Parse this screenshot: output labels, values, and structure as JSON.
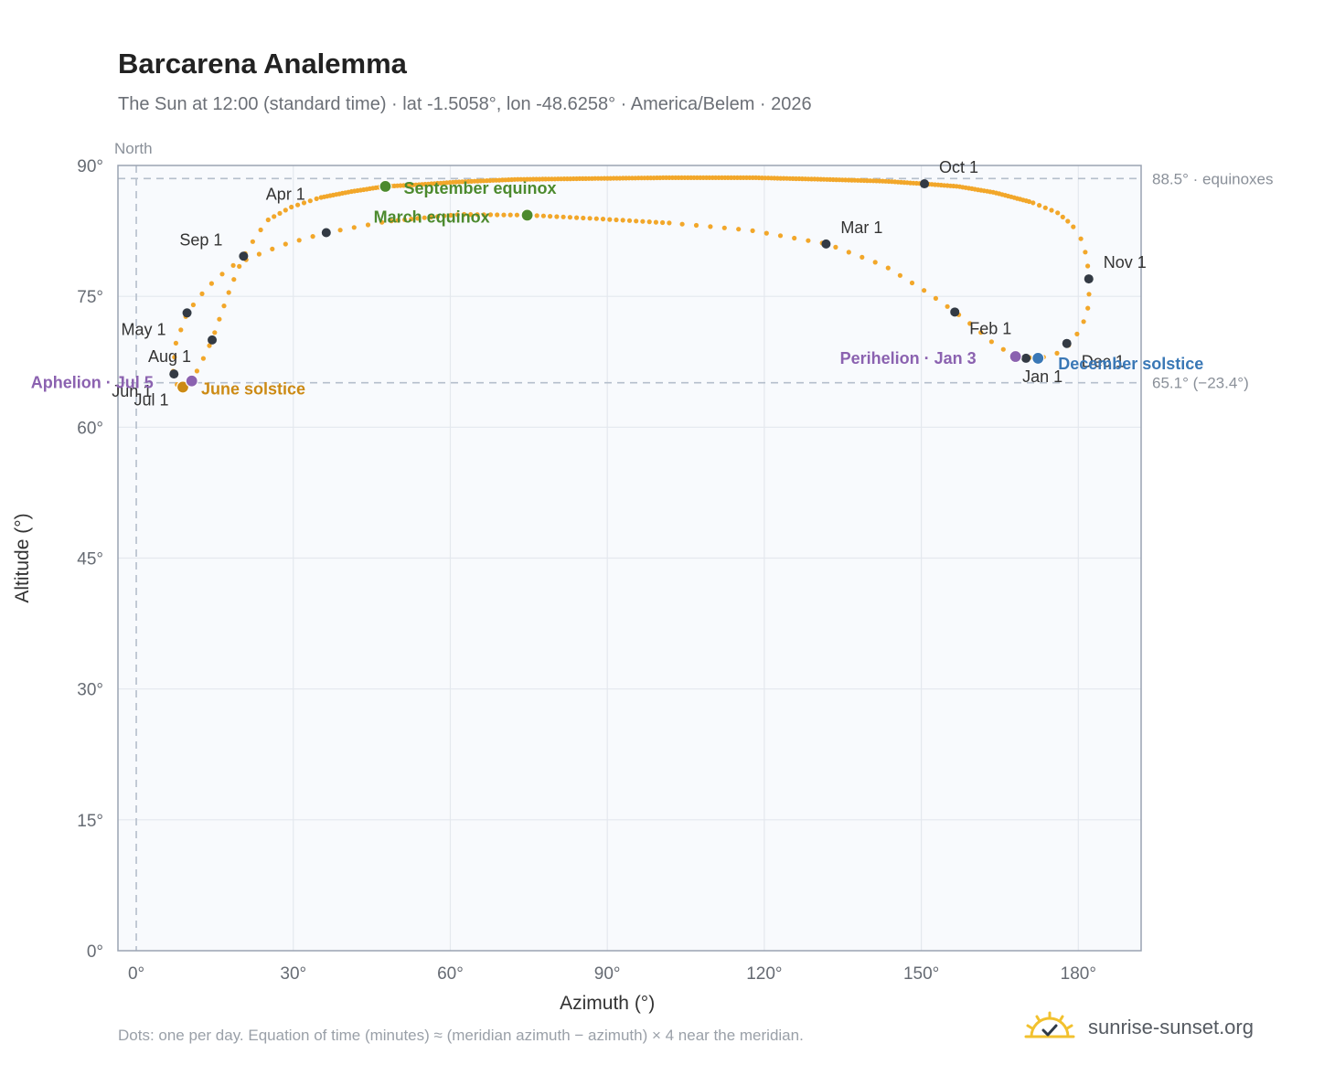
{
  "header": {
    "title": "Barcarena Analemma",
    "subtitle": "The Sun at 12:00 (standard time) · lat -1.5058°, lon -48.6258° · America/Belem · 2026"
  },
  "footer": {
    "note": "Dots: one per day. Equation of time (minutes) ≈ (meridian azimuth − azimuth) × 4 near the meridian.",
    "brand": "sunrise-sunset.org",
    "brand_icon": "sun-logo-icon"
  },
  "colors": {
    "analemma": "#f2a72a",
    "month_marker": "#333a44",
    "equinox": "#4c8a2e",
    "june_solstice": "#cc8a14",
    "december_solstice": "#3a78b6",
    "aphelion_perihelion": "#8b62b0",
    "plot_background": "#f8fafd",
    "grid": "#e4e8ee",
    "reference_line": "#b5bfcc"
  },
  "chart_data": {
    "type": "scatter",
    "title": "Barcarena Analemma",
    "xlabel": "Azimuth (°)",
    "ylabel": "Altitude (°)",
    "xlim": [
      -3.5,
      192
    ],
    "ylim": [
      0,
      90
    ],
    "x_ticks": [
      0,
      30,
      60,
      90,
      120,
      150,
      180
    ],
    "x_tick_labels": [
      "0°",
      "30°",
      "60°",
      "90°",
      "120°",
      "150°",
      "180°"
    ],
    "y_ticks": [
      0,
      15,
      30,
      45,
      60,
      75,
      90
    ],
    "y_tick_labels": [
      "0°",
      "15°",
      "30°",
      "45°",
      "60°",
      "75°",
      "90°"
    ],
    "grid": true,
    "north_line": {
      "azimuth": 0,
      "label": "North"
    },
    "reference_lines": [
      {
        "altitude": 88.5,
        "label": "88.5° · equinoxes"
      },
      {
        "altitude": 65.1,
        "label": "65.1° (−23.4°)"
      }
    ],
    "analemma_path": [
      [
        168.0,
        68.1
      ],
      [
        172.3,
        67.9
      ],
      [
        175.5,
        68.3
      ],
      [
        178.4,
        69.5
      ],
      [
        180.7,
        71.5
      ],
      [
        182.0,
        74.0
      ],
      [
        182.1,
        77.0
      ],
      [
        181.6,
        79.5
      ],
      [
        180.6,
        81.5
      ],
      [
        178.8,
        83.2
      ],
      [
        176.0,
        84.6
      ],
      [
        171.0,
        85.8
      ],
      [
        164.0,
        86.9
      ],
      [
        157.0,
        87.6
      ],
      [
        150.5,
        87.9
      ],
      [
        143.0,
        88.2
      ],
      [
        132.0,
        88.4
      ],
      [
        118.0,
        88.6
      ],
      [
        102.0,
        88.6
      ],
      [
        86.5,
        88.5
      ],
      [
        72.5,
        88.4
      ],
      [
        61.0,
        88.1
      ],
      [
        54.0,
        87.8
      ],
      [
        47.5,
        87.6
      ],
      [
        41.0,
        87.0
      ],
      [
        35.0,
        86.3
      ],
      [
        29.5,
        85.2
      ],
      [
        25.0,
        83.7
      ],
      [
        22.5,
        81.5
      ],
      [
        20.5,
        79.6
      ],
      [
        18.0,
        76.0
      ],
      [
        16.0,
        72.6
      ],
      [
        14.5,
        70.0
      ],
      [
        12.5,
        67.5
      ],
      [
        10.8,
        65.5
      ],
      [
        9.0,
        64.6
      ],
      [
        7.8,
        64.9
      ],
      [
        7.0,
        66.0
      ],
      [
        7.5,
        69.5
      ],
      [
        9.7,
        73.1
      ],
      [
        13.5,
        76.0
      ],
      [
        18.0,
        78.4
      ],
      [
        22.5,
        79.6
      ],
      [
        28.0,
        80.9
      ],
      [
        36.3,
        82.3
      ],
      [
        48.0,
        83.6
      ],
      [
        62.0,
        84.4
      ],
      [
        75.0,
        84.3
      ],
      [
        88.0,
        83.9
      ],
      [
        102.0,
        83.4
      ],
      [
        117.0,
        82.6
      ],
      [
        132.0,
        81.0
      ],
      [
        143.0,
        78.5
      ],
      [
        151.0,
        75.5
      ],
      [
        156.5,
        73.2
      ],
      [
        160.5,
        71.3
      ],
      [
        164.0,
        69.5
      ],
      [
        168.0,
        68.1
      ]
    ],
    "month_markers": [
      {
        "label": "Jan 1",
        "azimuth": 170.0,
        "altitude": 67.9
      },
      {
        "label": "Feb 1",
        "azimuth": 156.4,
        "altitude": 73.2
      },
      {
        "label": "Mar 1",
        "azimuth": 131.8,
        "altitude": 81.0
      },
      {
        "label": "Apr 1",
        "azimuth": 36.3,
        "altitude": 82.3
      },
      {
        "label": "May 1",
        "azimuth": 9.7,
        "altitude": 73.1
      },
      {
        "label": "Jun 1",
        "azimuth": 7.2,
        "altitude": 66.1
      },
      {
        "label": "Jul 1",
        "azimuth": 9.0,
        "altitude": 64.6
      },
      {
        "label": "Aug 1",
        "azimuth": 14.5,
        "altitude": 70.0
      },
      {
        "label": "Sep 1",
        "azimuth": 20.5,
        "altitude": 79.6
      },
      {
        "label": "Oct 1",
        "azimuth": 150.6,
        "altitude": 87.9
      },
      {
        "label": "Nov 1",
        "azimuth": 182.0,
        "altitude": 77.0
      },
      {
        "label": "Dec 1",
        "azimuth": 177.8,
        "altitude": 69.6
      }
    ],
    "events": [
      {
        "label": "March equinox",
        "azimuth": 74.7,
        "altitude": 84.3,
        "type": "equinox"
      },
      {
        "label": "September equinox",
        "azimuth": 47.6,
        "altitude": 87.6,
        "type": "equinox"
      },
      {
        "label": "June solstice",
        "azimuth": 8.9,
        "altitude": 64.6,
        "type": "june_solstice"
      },
      {
        "label": "December solstice",
        "azimuth": 172.3,
        "altitude": 67.9,
        "type": "december_solstice"
      },
      {
        "label": "Aphelion · Jul 5",
        "azimuth": 10.6,
        "altitude": 65.3,
        "type": "aphelion_perihelion"
      },
      {
        "label": "Perihelion · Jan 3",
        "azimuth": 168.0,
        "altitude": 68.1,
        "type": "aphelion_perihelion"
      }
    ]
  }
}
